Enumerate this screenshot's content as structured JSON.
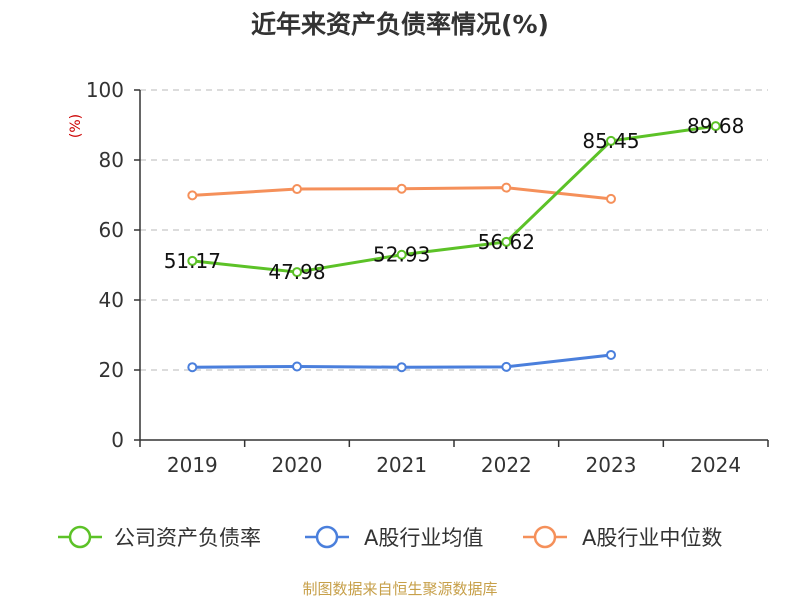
{
  "title": "近年来资产负债率情况(%)",
  "source": "制图数据来自恒生聚源数据库",
  "colors": {
    "company": "#5cc227",
    "industry_avg": "#4a7fdc",
    "industry_median": "#f5905a",
    "grid": "#c8c8c8",
    "axis": "#333333",
    "unit_label": "#cc0000",
    "source": "#c7a04a"
  },
  "chart_data": {
    "type": "line",
    "title": "近年来资产负债率情况(%)",
    "ylabel": "(%)",
    "categories": [
      "2019",
      "2020",
      "2021",
      "2022",
      "2023",
      "2024"
    ],
    "ylim": [
      0,
      100
    ],
    "yticks": [
      0,
      20,
      40,
      60,
      80,
      100
    ],
    "grid": "horizontal dashed",
    "legend_position": "bottom",
    "series": [
      {
        "name": "公司资产负债率",
        "color": "#5cc227",
        "values": [
          51.17,
          47.98,
          52.93,
          56.62,
          85.45,
          89.68
        ],
        "labels": [
          "51.17",
          "47.98",
          "52.93",
          "56.62",
          "85.45",
          "89.68"
        ]
      },
      {
        "name": "A股行业均值",
        "color": "#4a7fdc",
        "values": [
          20.8,
          21.0,
          20.8,
          20.9,
          24.3,
          null
        ]
      },
      {
        "name": "A股行业中位数",
        "color": "#f5905a",
        "values": [
          69.9,
          71.7,
          71.8,
          72.1,
          68.9,
          null
        ]
      }
    ]
  }
}
